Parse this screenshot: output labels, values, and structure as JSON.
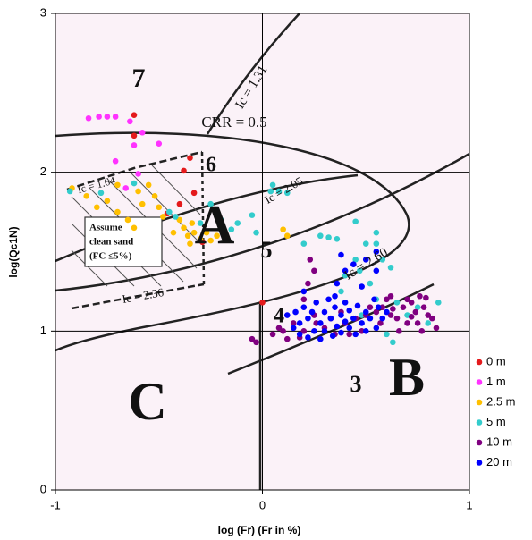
{
  "chart_data": {
    "type": "scatter",
    "xlabel": "log (Fr)    (Fr in %)",
    "ylabel": "log(Qc1N)",
    "xlim": [
      -1,
      1
    ],
    "ylim": [
      0,
      3
    ],
    "xticks": [
      -1,
      0,
      1
    ],
    "yticks": [
      0,
      1,
      2,
      3
    ],
    "grid": true,
    "legend_position": "lower right",
    "annotations": [
      "7",
      "6",
      "5",
      "4",
      "3",
      "Ic = 1.31",
      "CRR = 0.5",
      "Ic = 2.05",
      "Ic = 2.60",
      "Ic = 1.64",
      "Ic = 2.36",
      "A",
      "B",
      "C"
    ],
    "note": [
      "Assume",
      "clean sand",
      "(FC ≤5%)"
    ],
    "series": [
      {
        "name": "0 m",
        "color": "#e41a1c",
        "x": [
          -0.62,
          -0.62,
          -0.35,
          -0.38,
          -0.4,
          -0.33,
          -0.29,
          0.0,
          -0.46
        ],
        "values": [
          2.36,
          2.23,
          2.09,
          2.01,
          1.8,
          1.87,
          1.56,
          1.18,
          1.74
        ]
      },
      {
        "name": "1 m",
        "color": "#ff33ff",
        "x": [
          -0.84,
          -0.79,
          -0.75,
          -0.71,
          -0.64,
          -0.58,
          -0.5,
          -0.62,
          -0.66,
          -0.6,
          -0.71
        ],
        "values": [
          2.34,
          2.35,
          2.35,
          2.35,
          2.32,
          2.25,
          2.18,
          2.17,
          1.9,
          1.99,
          2.07
        ]
      },
      {
        "name": "2.5 m",
        "color": "#ffc000",
        "x": [
          -0.92,
          -0.85,
          -0.8,
          -0.75,
          -0.7,
          -0.65,
          -0.6,
          -0.58,
          -0.55,
          -0.52,
          -0.5,
          -0.48,
          -0.62,
          -0.4,
          -0.38,
          -0.36,
          -0.35,
          -0.33,
          -0.3,
          -0.27,
          -0.25,
          -0.22,
          -0.18,
          -0.43,
          0.1,
          0.12,
          -0.34,
          -0.7
        ],
        "values": [
          1.9,
          1.85,
          1.78,
          1.82,
          1.75,
          1.7,
          1.88,
          1.8,
          1.92,
          1.85,
          1.78,
          1.72,
          1.65,
          1.7,
          1.65,
          1.6,
          1.55,
          1.62,
          1.58,
          1.62,
          1.57,
          1.6,
          1.58,
          1.62,
          1.64,
          1.6,
          1.68,
          1.92
        ]
      },
      {
        "name": "5 m",
        "color": "#33cccc",
        "x": [
          -0.93,
          -0.78,
          -0.62,
          -0.45,
          -0.42,
          -0.3,
          -0.25,
          -0.2,
          -0.15,
          -0.05,
          -0.03,
          0.05,
          0.04,
          0.12,
          0.2,
          0.28,
          0.32,
          0.36,
          0.45,
          0.5,
          0.55,
          0.45,
          0.4,
          0.47,
          0.52,
          0.58,
          0.62,
          0.38,
          0.55,
          0.65,
          0.7,
          0.75,
          0.8,
          0.85,
          0.6,
          0.63,
          0.48,
          0.55,
          -0.12,
          0.08
        ],
        "values": [
          1.88,
          1.87,
          1.93,
          1.75,
          1.72,
          1.68,
          1.8,
          1.7,
          1.64,
          1.73,
          1.62,
          1.92,
          1.88,
          1.87,
          1.55,
          1.6,
          1.59,
          1.58,
          1.69,
          1.55,
          1.62,
          1.45,
          1.35,
          1.38,
          1.3,
          1.45,
          1.4,
          1.25,
          1.2,
          1.18,
          1.1,
          1.15,
          1.05,
          1.18,
          0.98,
          0.93,
          1.1,
          1.55,
          1.68,
          1.88
        ]
      },
      {
        "name": "10 m",
        "color": "#800080",
        "x": [
          -0.05,
          -0.03,
          0.05,
          0.1,
          0.15,
          0.2,
          0.25,
          0.2,
          0.22,
          0.25,
          0.23,
          0.26,
          0.3,
          0.35,
          0.4,
          0.45,
          0.5,
          0.55,
          0.58,
          0.6,
          0.62,
          0.65,
          0.68,
          0.7,
          0.72,
          0.74,
          0.76,
          0.78,
          0.8,
          0.82,
          0.84,
          0.7,
          0.66,
          0.62,
          0.57,
          0.52,
          0.48,
          0.42,
          0.38,
          0.33,
          0.18,
          0.12,
          0.08,
          0.75,
          0.79,
          0.72,
          0.63,
          0.77
        ],
        "values": [
          0.95,
          0.93,
          0.98,
          1.0,
          1.05,
          1.0,
          1.1,
          1.2,
          1.3,
          1.38,
          1.45,
          1.05,
          1.02,
          0.98,
          1.05,
          1.08,
          1.1,
          1.12,
          1.15,
          1.2,
          1.1,
          1.08,
          1.15,
          1.2,
          1.18,
          1.12,
          1.22,
          1.15,
          1.1,
          1.08,
          1.02,
          1.05,
          1.0,
          1.22,
          1.05,
          1.15,
          1.0,
          0.98,
          1.12,
          1.08,
          0.96,
          0.95,
          1.02,
          1.05,
          1.21,
          1.09,
          1.14,
          1.0
        ]
      },
      {
        "name": "20 m",
        "color": "#0000ff",
        "x": [
          0.12,
          0.15,
          0.16,
          0.18,
          0.18,
          0.2,
          0.22,
          0.22,
          0.24,
          0.25,
          0.26,
          0.28,
          0.28,
          0.3,
          0.3,
          0.32,
          0.33,
          0.34,
          0.35,
          0.36,
          0.38,
          0.38,
          0.4,
          0.4,
          0.42,
          0.42,
          0.44,
          0.45,
          0.46,
          0.48,
          0.5,
          0.5,
          0.52,
          0.54,
          0.55,
          0.56,
          0.58,
          0.6,
          0.36,
          0.4,
          0.44,
          0.38,
          0.5,
          0.55,
          0.55,
          0.48,
          0.35,
          0.2
        ],
        "values": [
          1.1,
          1.02,
          1.12,
          1.05,
          0.98,
          1.15,
          1.08,
          0.96,
          1.12,
          1.0,
          1.18,
          1.05,
          0.95,
          1.12,
          1.0,
          1.2,
          1.08,
          0.97,
          1.15,
          1.03,
          1.1,
          0.99,
          1.18,
          1.06,
          1.13,
          1.02,
          1.08,
          0.98,
          1.16,
          1.05,
          1.12,
          1.0,
          1.08,
          1.2,
          1.02,
          1.15,
          1.08,
          1.12,
          1.3,
          1.38,
          1.42,
          1.48,
          1.45,
          1.5,
          1.38,
          1.28,
          1.22,
          1.25
        ]
      }
    ]
  }
}
